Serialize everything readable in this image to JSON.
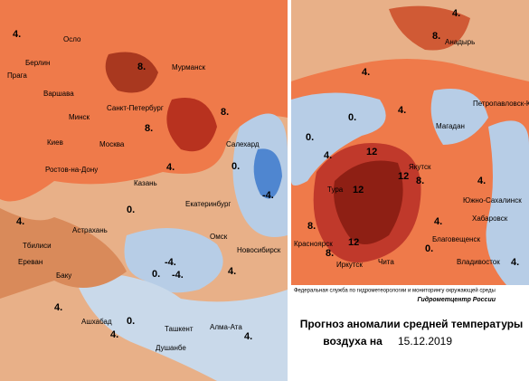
{
  "title": {
    "line1": "Прогноз аномалии средней температуры",
    "line2": "воздуха на",
    "date": "15.12.2019"
  },
  "agency": "Федеральная служба по гидрометеорологии и мониторингу окружающей среды",
  "brand": "Гидрометцентр России",
  "cities": [
    "Осло",
    "Берлин",
    "Прага",
    "Варшава",
    "Минск",
    "Киев",
    "Москва",
    "Санкт-Петербург",
    "Мурманск",
    "Салехард",
    "Казань",
    "Ростов-на-Дону",
    "Екатеринбург",
    "Астрахань",
    "Тбилиси",
    "Ереван",
    "Омск",
    "Новосибирск",
    "Баку",
    "Ашхабад",
    "Ташкент",
    "Алма-Ата",
    "Душанбе",
    "Анадырь",
    "Петропавловск-Камчатский",
    "Магадан",
    "Якутск",
    "Тура",
    "Южно-Сахалинск",
    "Хабаровск",
    "Красноярск",
    "Благовещенск",
    "Чита",
    "Иркутск",
    "Владивосток"
  ],
  "contour_labels": [
    "4.",
    "8.",
    "8.",
    "8.",
    "4.",
    "4.",
    "0.",
    "-4.",
    "0.",
    "4.",
    "0.",
    "4.",
    "-4.",
    "-4.",
    "0.",
    "4.",
    "4.",
    "0.",
    "4.",
    "4.",
    "8.",
    "0.",
    "4.",
    "8.",
    "12",
    "12",
    "12",
    "12",
    "8.",
    "4.",
    "0.",
    "4.",
    "8.",
    "4.",
    "4."
  ]
}
